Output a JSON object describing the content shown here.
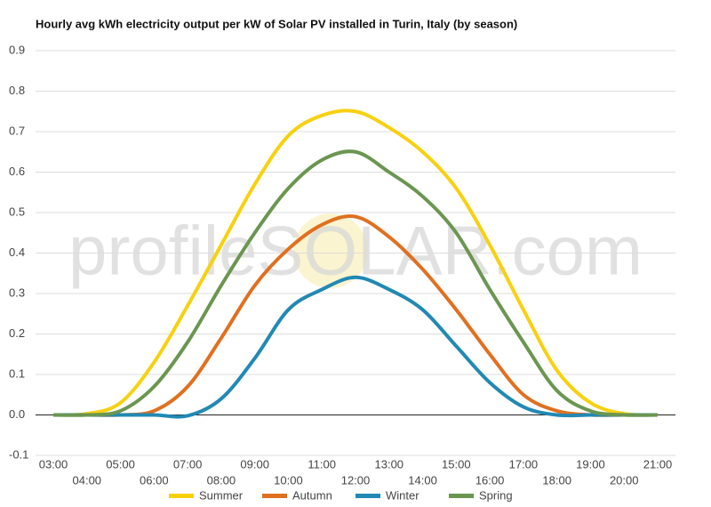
{
  "chart_data": {
    "type": "line",
    "title": "Hourly avg kWh electricity output per kW of Solar PV installed in Turin, Italy (by season)",
    "watermark": "profileSOLAR.com",
    "categories": [
      "03:00",
      "04:00",
      "05:00",
      "06:00",
      "07:00",
      "08:00",
      "09:00",
      "10:00",
      "11:00",
      "12:00",
      "13:00",
      "14:00",
      "15:00",
      "16:00",
      "17:00",
      "18:00",
      "19:00",
      "20:00",
      "21:00"
    ],
    "ylim": [
      -0.1,
      0.9
    ],
    "yticks": [
      -0.1,
      {
        "value": 0,
        "label": "0.0"
      },
      0.1,
      0.2,
      0.3,
      0.4,
      0.5,
      0.6,
      0.7,
      0.8,
      0.9
    ],
    "grid": true,
    "legend": "bottom",
    "series": [
      {
        "name": "Summer",
        "color": "#f7d110",
        "values": [
          0,
          0.003,
          0.03,
          0.13,
          0.27,
          0.42,
          0.57,
          0.69,
          0.74,
          0.75,
          0.71,
          0.65,
          0.56,
          0.42,
          0.26,
          0.11,
          0.03,
          0.003,
          0
        ]
      },
      {
        "name": "Autumn",
        "color": "#e07020",
        "values": [
          0,
          0,
          0,
          0.01,
          0.07,
          0.19,
          0.32,
          0.41,
          0.47,
          0.49,
          0.44,
          0.36,
          0.26,
          0.15,
          0.05,
          0.01,
          0,
          0,
          0
        ]
      },
      {
        "name": "Winter",
        "color": "#2189b4",
        "values": [
          0,
          0,
          0,
          0,
          -0.002,
          0.04,
          0.14,
          0.26,
          0.31,
          0.34,
          0.31,
          0.26,
          0.17,
          0.08,
          0.02,
          0,
          0,
          0,
          0
        ]
      },
      {
        "name": "Spring",
        "color": "#6b9650",
        "values": [
          0,
          0,
          0.01,
          0.07,
          0.18,
          0.32,
          0.45,
          0.56,
          0.63,
          0.65,
          0.6,
          0.54,
          0.45,
          0.31,
          0.18,
          0.06,
          0.01,
          0,
          0
        ]
      }
    ]
  }
}
